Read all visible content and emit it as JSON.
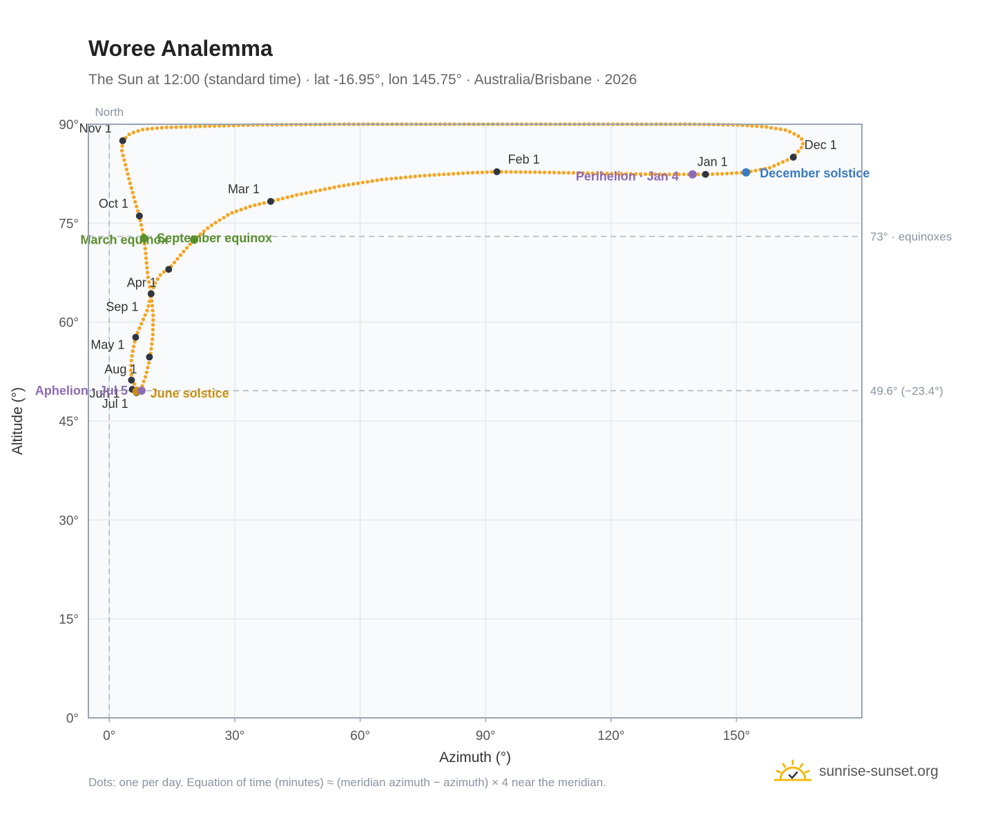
{
  "header": {
    "title": "Woree Analemma",
    "subtitle": "The Sun at 12:00 (standard time) · lat -16.95°, lon 145.75° · Australia/Brisbane · 2026"
  },
  "footer": {
    "note": "Dots: one per day. Equation of time (minutes) ≈ (meridian azimuth − azimuth) × 4 near the meridian.",
    "brand": "sunrise-sunset.org"
  },
  "colors": {
    "curve": "#f5a623",
    "month_marker": "#2f3640",
    "equinox": "#5a8f2e",
    "june_solstice": "#c8900e",
    "december_solstice": "#3a7bbf",
    "apsis": "#8e6bb5",
    "grid": "#e4e9ee",
    "plot_bg": "#f8fafc",
    "axis": "#9aa4b0",
    "ref_line": "#aab3bd"
  },
  "chart_data": {
    "type": "scatter",
    "xlabel": "Azimuth (°)",
    "ylabel": "Altitude (°)",
    "xlim": [
      -5,
      180
    ],
    "ylim": [
      0,
      90
    ],
    "x_ticks": [
      0,
      30,
      60,
      90,
      120,
      150
    ],
    "x_tick_labels": [
      "0°",
      "30°",
      "60°",
      "90°",
      "120°",
      "150°"
    ],
    "y_ticks": [
      0,
      15,
      30,
      45,
      60,
      75,
      90
    ],
    "y_tick_labels": [
      "0°",
      "15°",
      "30°",
      "45°",
      "60°",
      "75°",
      "90°"
    ],
    "grid": true,
    "north_line": {
      "azimuth": 0,
      "label": "North"
    },
    "reference_lines": [
      {
        "altitude": 73.0,
        "label": "73° · equinoxes"
      },
      {
        "altitude": 49.6,
        "label": "49.6° (−23.4°)"
      }
    ],
    "path": [
      [
        6.6,
        50.0
      ],
      [
        6.1,
        50.5
      ],
      [
        5.6,
        51.2
      ],
      [
        5.1,
        52.5
      ],
      [
        5.3,
        54.5
      ],
      [
        5.8,
        56.2
      ],
      [
        6.3,
        57.7
      ],
      [
        7.5,
        59.5
      ],
      [
        9.2,
        62.0
      ],
      [
        10.0,
        64.3
      ],
      [
        11.0,
        66.0
      ],
      [
        12.5,
        67.4
      ],
      [
        14.2,
        68.0
      ],
      [
        17.5,
        70.5
      ],
      [
        20.3,
        72.5
      ],
      [
        24.0,
        74.5
      ],
      [
        29.0,
        76.5
      ],
      [
        34.0,
        77.6
      ],
      [
        38.6,
        78.3
      ],
      [
        45.0,
        79.3
      ],
      [
        55.0,
        80.6
      ],
      [
        65.0,
        81.6
      ],
      [
        75.0,
        82.2
      ],
      [
        85.0,
        82.6
      ],
      [
        92.7,
        82.8
      ],
      [
        105.0,
        82.7
      ],
      [
        120.0,
        82.5
      ],
      [
        132.0,
        82.4
      ],
      [
        139.5,
        82.4
      ],
      [
        142.6,
        82.4
      ],
      [
        147.0,
        82.5
      ],
      [
        152.3,
        82.7
      ],
      [
        158.0,
        83.4
      ],
      [
        163.6,
        85.0
      ],
      [
        166.0,
        86.8
      ],
      [
        165.5,
        88.0
      ],
      [
        162.0,
        89.1
      ],
      [
        157.0,
        89.6
      ],
      [
        150.0,
        89.9
      ],
      [
        140.0,
        90.0
      ],
      [
        125.0,
        90.0
      ],
      [
        100.0,
        90.0
      ],
      [
        70.0,
        90.0
      ],
      [
        56.0,
        90.0
      ],
      [
        35.0,
        89.9
      ],
      [
        23.1,
        89.7
      ],
      [
        13.0,
        89.5
      ],
      [
        8.0,
        89.2
      ],
      [
        5.0,
        88.6
      ],
      [
        3.2,
        87.5
      ],
      [
        3.0,
        86.0
      ],
      [
        3.8,
        84.0
      ],
      [
        5.0,
        81.0
      ],
      [
        6.3,
        78.0
      ],
      [
        7.2,
        76.1
      ],
      [
        7.8,
        74.2
      ],
      [
        8.3,
        72.7
      ],
      [
        8.7,
        70.5
      ],
      [
        9.2,
        67.0
      ],
      [
        10.0,
        64.3
      ],
      [
        10.5,
        61.0
      ],
      [
        10.4,
        58.0
      ],
      [
        9.8,
        54.7
      ],
      [
        8.8,
        52.0
      ],
      [
        7.7,
        50.0
      ],
      [
        6.8,
        49.6
      ],
      [
        6.6,
        50.0
      ]
    ],
    "month_markers": [
      {
        "label": "Jan 1",
        "x": 142.6,
        "y": 82.4
      },
      {
        "label": "Feb 1",
        "x": 92.7,
        "y": 82.8
      },
      {
        "label": "Mar 1",
        "x": 38.6,
        "y": 78.3
      },
      {
        "label": "Apr 1",
        "x": 10.0,
        "y": 64.3
      },
      {
        "label": "May 1",
        "x": 9.6,
        "y": 54.7
      },
      {
        "label": "Jun 1",
        "x": 5.5,
        "y": 49.8
      },
      {
        "label": "Jul 1",
        "x": 6.5,
        "y": 49.3
      },
      {
        "label": "Aug 1",
        "x": 5.3,
        "y": 51.2
      },
      {
        "label": "Sep 1",
        "x": 6.3,
        "y": 57.7
      },
      {
        "label": "Oct 1",
        "x": 7.2,
        "y": 76.1
      },
      {
        "label": "Nov 1",
        "x": 3.2,
        "y": 87.5
      },
      {
        "label": "Dec 1",
        "x": 163.6,
        "y": 85.0
      },
      {
        "label": "",
        "x": 14.2,
        "y": 68.0
      }
    ],
    "events": [
      {
        "label": "March equinox",
        "x": 8.3,
        "y": 72.7,
        "kind": "equinox"
      },
      {
        "label": "September equinox",
        "x": 20.3,
        "y": 72.5,
        "kind": "equinox"
      },
      {
        "label": "June solstice",
        "x": 6.5,
        "y": 49.5,
        "kind": "june_solstice"
      },
      {
        "label": "December solstice",
        "x": 152.3,
        "y": 82.7,
        "kind": "december_solstice"
      },
      {
        "label": "Perihelion · Jan 4",
        "x": 139.5,
        "y": 82.4,
        "kind": "apsis"
      },
      {
        "label": "Aphelion · Jul 5",
        "x": 7.7,
        "y": 49.6,
        "kind": "apsis"
      }
    ]
  }
}
